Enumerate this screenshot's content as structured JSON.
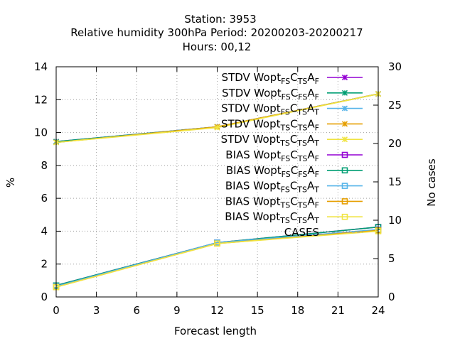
{
  "chart_data": {
    "type": "line",
    "title_lines": [
      "Station:     3953",
      "Relative humidity 300hPa   Period: 20200203-20200217",
      "Hours:  00,12"
    ],
    "xlabel": "Forecast length",
    "ylabel": "%",
    "y2label": "No cases",
    "x": [
      0,
      12,
      24
    ],
    "xlim": [
      0,
      24
    ],
    "ylim": [
      0,
      14
    ],
    "y2lim": [
      0,
      30
    ],
    "xticks": [
      "0",
      "3",
      "6",
      "9",
      "12",
      "15",
      "18",
      "21",
      "24"
    ],
    "yticks": [
      "0",
      "2",
      "4",
      "6",
      "8",
      "10",
      "12",
      "14"
    ],
    "y2ticks": [
      "0",
      "5",
      "10",
      "15",
      "20",
      "25",
      "30"
    ],
    "grid": true,
    "legend_position": "top-right",
    "series": [
      {
        "prefix": "STDV Wopt",
        "sub1": "FS",
        "sub2": "TS",
        "sub3": "F",
        "color": "#9400d3",
        "marker": "x-star",
        "axis": "y",
        "values": [
          9.45,
          10.35,
          12.35
        ]
      },
      {
        "prefix": "STDV Wopt",
        "sub1": "FS",
        "sub2": "FS",
        "sub3": "F",
        "color": "#009e73",
        "marker": "x-star",
        "axis": "y",
        "values": [
          9.45,
          10.35,
          12.35
        ]
      },
      {
        "prefix": "STDV Wopt",
        "sub1": "FS",
        "sub2": "TS",
        "sub3": "T",
        "color": "#56b4e9",
        "marker": "x-star",
        "axis": "y",
        "values": [
          9.4,
          10.35,
          12.35
        ]
      },
      {
        "prefix": "STDV Wopt",
        "sub1": "TS",
        "sub2": "TS",
        "sub3": "F",
        "color": "#e69f00",
        "marker": "x-star",
        "axis": "y",
        "values": [
          9.4,
          10.35,
          12.35
        ]
      },
      {
        "prefix": "STDV Wopt",
        "sub1": "TS",
        "sub2": "TS",
        "sub3": "T",
        "color": "#f0e442",
        "marker": "x-star",
        "axis": "y",
        "values": [
          9.4,
          10.3,
          12.35
        ]
      },
      {
        "prefix": "BIAS Wopt",
        "sub1": "FS",
        "sub2": "TS",
        "sub3": "F",
        "color": "#9400d3",
        "marker": "square",
        "axis": "y",
        "values": [
          0.7,
          3.3,
          4.25
        ]
      },
      {
        "prefix": "BIAS Wopt",
        "sub1": "FS",
        "sub2": "FS",
        "sub3": "F",
        "color": "#009e73",
        "marker": "square",
        "axis": "y",
        "values": [
          0.7,
          3.3,
          4.25
        ]
      },
      {
        "prefix": "BIAS Wopt",
        "sub1": "FS",
        "sub2": "TS",
        "sub3": "T",
        "color": "#56b4e9",
        "marker": "square",
        "axis": "y",
        "values": [
          0.65,
          3.3,
          4.1
        ]
      },
      {
        "prefix": "BIAS Wopt",
        "sub1": "TS",
        "sub2": "TS",
        "sub3": "F",
        "color": "#e69f00",
        "marker": "square",
        "axis": "y",
        "values": [
          0.6,
          3.25,
          4.05
        ]
      },
      {
        "prefix": "BIAS Wopt",
        "sub1": "TS",
        "sub2": "TS",
        "sub3": "T",
        "color": "#f0e442",
        "marker": "square",
        "axis": "y",
        "values": [
          0.6,
          3.25,
          4.0
        ]
      },
      {
        "name": "CASES",
        "color": "#a0a0a0",
        "dashed": true,
        "marker": "none",
        "axis": "y2",
        "values": [
          30,
          30,
          30
        ]
      }
    ]
  }
}
